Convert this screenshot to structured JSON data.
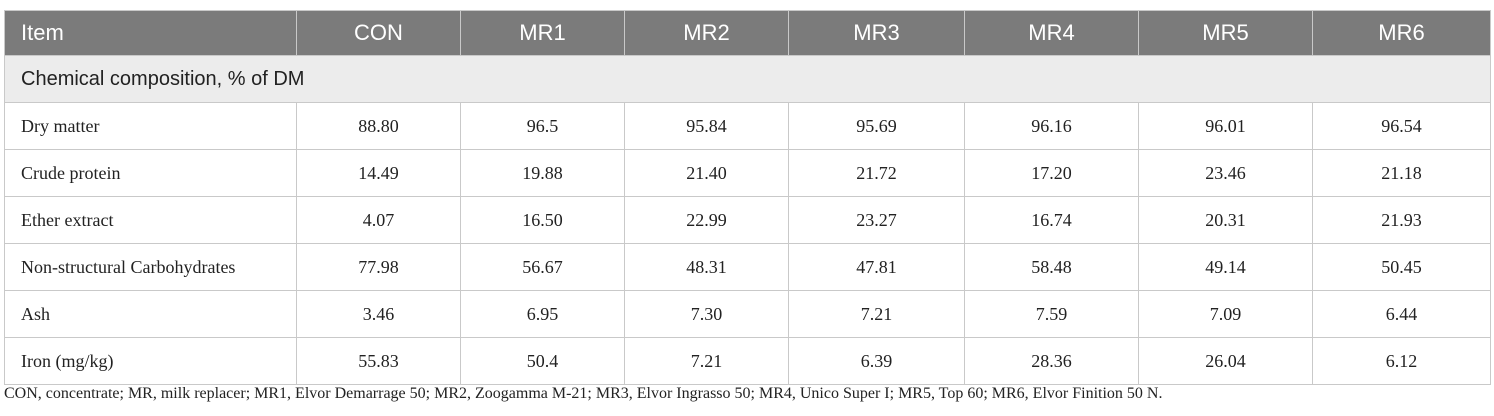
{
  "table": {
    "headers": [
      "Item",
      "CON",
      "MR1",
      "MR2",
      "MR3",
      "MR4",
      "MR5",
      "MR6"
    ],
    "section_title": "Chemical composition, % of DM",
    "rows": [
      {
        "item": "Dry matter",
        "values": [
          "88.80",
          "96.5",
          "95.84",
          "95.69",
          "96.16",
          "96.01",
          "96.54"
        ]
      },
      {
        "item": "Crude protein",
        "values": [
          "14.49",
          "19.88",
          "21.40",
          "21.72",
          "17.20",
          "23.46",
          "21.18"
        ]
      },
      {
        "item": "Ether extract",
        "values": [
          "4.07",
          "16.50",
          "22.99",
          "23.27",
          "16.74",
          "20.31",
          "21.93"
        ]
      },
      {
        "item": "Non-structural Carbohydrates",
        "values": [
          "77.98",
          "56.67",
          "48.31",
          "47.81",
          "58.48",
          "49.14",
          "50.45"
        ]
      },
      {
        "item": "Ash",
        "values": [
          "3.46",
          "6.95",
          "7.30",
          "7.21",
          "7.59",
          "7.09",
          "6.44"
        ]
      },
      {
        "item": "Iron (mg/kg)",
        "values": [
          "55.83",
          "50.4",
          "7.21",
          "6.39",
          "28.36",
          "26.04",
          "6.12"
        ]
      }
    ]
  },
  "footnote": "CON, concentrate; MR, milk replacer; MR1, Elvor Demarrage 50; MR2, Zoogamma M-21; MR3, Elvor Ingrasso 50; MR4, Unico Super I; MR5, Top 60; MR6, Elvor Finition 50 N.",
  "colors": {
    "header_bg": "#7b7b7b",
    "section_bg": "#ececec",
    "border": "#c9c9c9"
  }
}
